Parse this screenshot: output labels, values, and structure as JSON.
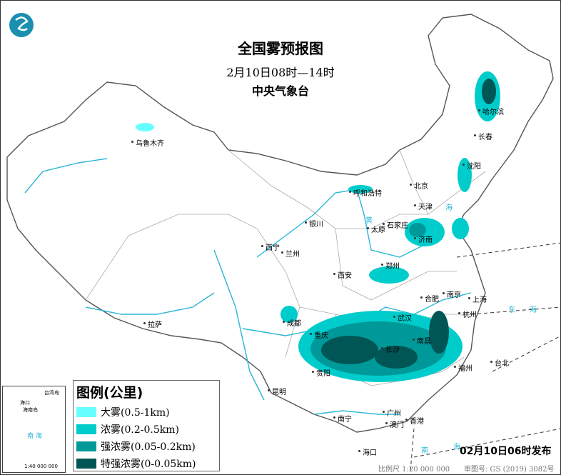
{
  "header": {
    "title": "全国雾预报图",
    "time_range": "2月10日08时—14时",
    "agency": "中央气象台"
  },
  "legend": {
    "title": "图例(公里)",
    "items": [
      {
        "label": "大雾(0.5-1km)",
        "color": "#66ffff"
      },
      {
        "label": "浓雾(0.2-0.5km)",
        "color": "#00cccc"
      },
      {
        "label": "强浓雾(0.05-0.2km)",
        "color": "#009999"
      },
      {
        "label": "特强浓雾(0-0.05km)",
        "color": "#005555"
      }
    ]
  },
  "inset": {
    "labels": [
      "台湾岛",
      "海口",
      "海南岛",
      "南 海",
      "1:40 000 000"
    ]
  },
  "cities": [
    "乌鲁木齐",
    "哈尔滨",
    "长春",
    "沈阳",
    "北京",
    "天津",
    "呼和浩特",
    "石家庄",
    "太原",
    "济南",
    "银川",
    "西宁",
    "兰州",
    "西安",
    "郑州",
    "合肥",
    "南京",
    "上海",
    "杭州",
    "武汉",
    "成都",
    "重庆",
    "长沙",
    "南昌",
    "贵阳",
    "福州",
    "台北",
    "拉萨",
    "昆明",
    "南宁",
    "广州",
    "香港",
    "澳门",
    "海口"
  ],
  "seas": [
    "黄",
    "海",
    "东",
    "海",
    "南",
    "海"
  ],
  "footer": {
    "issued": "02月10日06时发布",
    "scale": "比例尺 1:20 000 000",
    "approval": "审图号: GS (2019) 3082号"
  },
  "logo_icon": "cma-logo-icon"
}
